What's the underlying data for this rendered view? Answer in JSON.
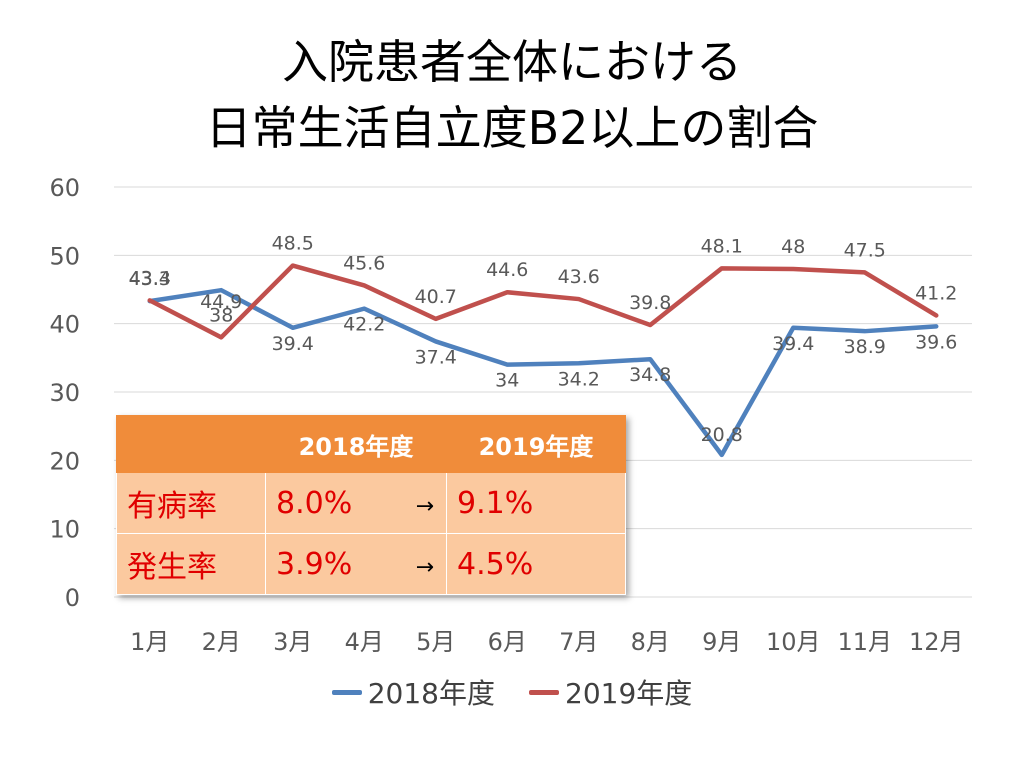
{
  "title": {
    "line1": "入院患者全体における",
    "line2": "日常生活自立度B2以上の割合"
  },
  "colors": {
    "series_2018": "#4f81bd",
    "series_2019": "#c0504d",
    "grid": "#d9d9d9",
    "axis_text": "#595959"
  },
  "chart_data": {
    "type": "line",
    "title": "入院患者全体における日常生活自立度B2以上の割合",
    "categories": [
      "1月",
      "2月",
      "3月",
      "4月",
      "5月",
      "6月",
      "7月",
      "8月",
      "9月",
      "10月",
      "11月",
      "12月"
    ],
    "series": [
      {
        "name": "2018年度",
        "values": [
          43.3,
          44.9,
          39.4,
          42.2,
          37.4,
          34,
          34.2,
          34.8,
          20.8,
          39.4,
          38.9,
          39.6
        ],
        "labels": [
          "43.3",
          "44.9",
          "39.4",
          "42.2",
          "37.4",
          "34",
          "34.2",
          "34.8",
          "20.8",
          "39.4",
          "38.9",
          "39.6"
        ]
      },
      {
        "name": "2019年度",
        "values": [
          43.4,
          38,
          48.5,
          45.6,
          40.7,
          44.6,
          43.6,
          39.8,
          48.1,
          48,
          47.5,
          41.2
        ],
        "labels": [
          "43.4",
          "38",
          "48.5",
          "45.6",
          "40.7",
          "44.6",
          "43.6",
          "39.8",
          "48.1",
          "48",
          "47.5",
          "41.2"
        ]
      }
    ],
    "ylim": [
      0,
      60
    ],
    "yticks": [
      "0",
      "10",
      "20",
      "30",
      "40",
      "50",
      "60"
    ],
    "grid": true,
    "legend": "bottom"
  },
  "table": {
    "headers": [
      "",
      "2018年度",
      "2019年度"
    ],
    "rows": [
      {
        "label": "有病率",
        "v2018": "8.0%",
        "arrow": "→",
        "v2019": "9.1%"
      },
      {
        "label": "発生率",
        "v2018": "3.9%",
        "arrow": "→",
        "v2019": "4.5%"
      }
    ]
  }
}
